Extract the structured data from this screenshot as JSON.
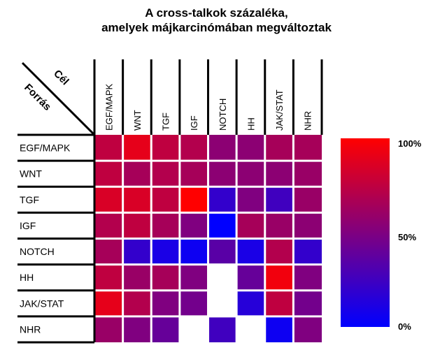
{
  "chart_data": {
    "type": "heatmap",
    "title": [
      "A cross-talkok százaléka,",
      "amelyek májkarcinómában megváltoztak"
    ],
    "corner_labels": {
      "columns": "Cél",
      "rows": "Forrás"
    },
    "columns": [
      "EGF/MAPK",
      "WNT",
      "TGF",
      "IGF",
      "NOTCH",
      "HH",
      "JAK/STAT",
      "NHR"
    ],
    "rows": [
      "EGF/MAPK",
      "WNT",
      "TGF",
      "IGF",
      "NOTCH",
      "HH",
      "JAK/STAT",
      "NHR"
    ],
    "values": [
      [
        75,
        90,
        75,
        70,
        55,
        55,
        65,
        65
      ],
      [
        75,
        65,
        70,
        65,
        55,
        55,
        55,
        60
      ],
      [
        85,
        85,
        75,
        100,
        20,
        50,
        25,
        60
      ],
      [
        70,
        75,
        65,
        50,
        0,
        65,
        60,
        55
      ],
      [
        65,
        20,
        10,
        5,
        35,
        10,
        70,
        20
      ],
      [
        75,
        60,
        65,
        50,
        null,
        40,
        95,
        50
      ],
      [
        90,
        70,
        50,
        45,
        null,
        15,
        75,
        45
      ],
      [
        60,
        50,
        40,
        null,
        25,
        null,
        5,
        50
      ]
    ],
    "null_meaning": "white cell",
    "colorbar": {
      "ticks": [
        "100%",
        "50%",
        "0%"
      ],
      "low_color": "#0000ff",
      "high_color": "#ff0000",
      "range": [
        0,
        100
      ]
    }
  }
}
